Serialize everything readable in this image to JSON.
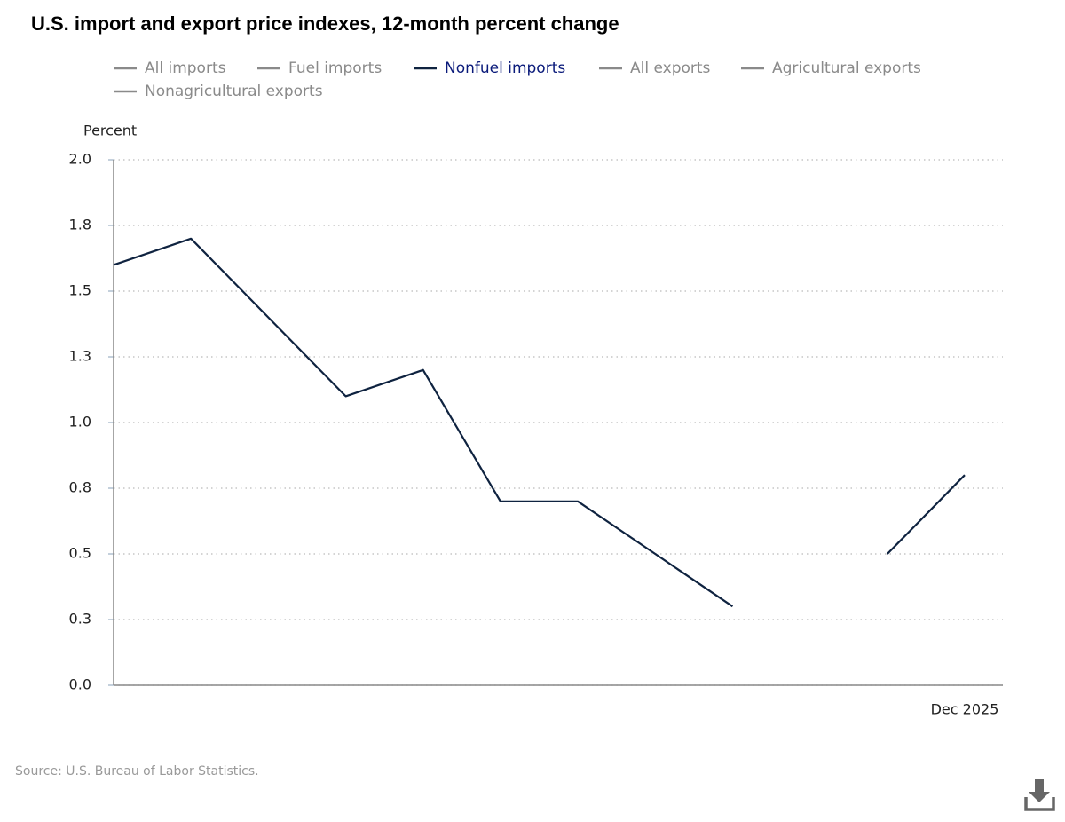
{
  "chart_data": {
    "type": "line",
    "title": "U.S. import and export price indexes, 12-month percent change",
    "y_label": "Percent",
    "source": "Source: U.S. Bureau of Labor Statistics.",
    "categories": [
      null,
      null,
      null,
      null,
      null,
      null,
      null,
      null,
      null,
      null,
      null,
      "Dec 2025"
    ],
    "series": [
      {
        "name": "All imports",
        "color": "#8a8a8a",
        "visible": false,
        "values": [
          null,
          null,
          null,
          null,
          null,
          null,
          null,
          null,
          null,
          null,
          null,
          null
        ]
      },
      {
        "name": "Fuel imports",
        "color": "#8a8a8a",
        "visible": false,
        "values": [
          null,
          null,
          null,
          null,
          null,
          null,
          null,
          null,
          null,
          null,
          null,
          null
        ]
      },
      {
        "name": "Nonfuel imports",
        "color": "#0f2340",
        "visible": true,
        "values": [
          1.6,
          1.7,
          1.4,
          1.1,
          1.2,
          0.7,
          0.7,
          0.5,
          0.3,
          null,
          0.5,
          0.8
        ]
      },
      {
        "name": "All exports",
        "color": "#8a8a8a",
        "visible": false,
        "values": [
          null,
          null,
          null,
          null,
          null,
          null,
          null,
          null,
          null,
          null,
          null,
          null
        ]
      },
      {
        "name": "Agricultural exports",
        "color": "#8a8a8a",
        "visible": false,
        "values": [
          null,
          null,
          null,
          null,
          null,
          null,
          null,
          null,
          null,
          null,
          null,
          null
        ]
      },
      {
        "name": "Nonagricultural exports",
        "color": "#8a8a8a",
        "visible": false,
        "values": [
          null,
          null,
          null,
          null,
          null,
          null,
          null,
          null,
          null,
          null,
          null,
          null
        ]
      }
    ],
    "ylim": [
      0,
      2
    ],
    "yticks": [
      {
        "value": 0,
        "label": "0.0"
      },
      {
        "value": 0.25,
        "label": "0.3"
      },
      {
        "value": 0.5,
        "label": "0.5"
      },
      {
        "value": 0.75,
        "label": "0.8"
      },
      {
        "value": 1,
        "label": "1.0"
      },
      {
        "value": 1.25,
        "label": "1.3"
      },
      {
        "value": 1.5,
        "label": "1.5"
      },
      {
        "value": 1.75,
        "label": "1.8"
      },
      {
        "value": 2,
        "label": "2.0"
      }
    ],
    "grid": true
  }
}
